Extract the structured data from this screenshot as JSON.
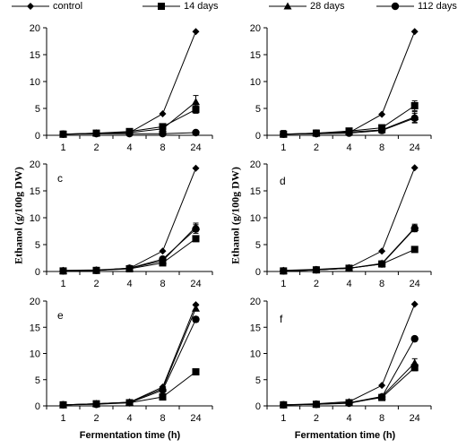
{
  "legend": {
    "items": [
      {
        "label": "control",
        "marker": "diamond"
      },
      {
        "label": "14 days",
        "marker": "square"
      },
      {
        "label": "28 days",
        "marker": "triangle"
      },
      {
        "label": "112 days",
        "marker": "circle"
      }
    ]
  },
  "y_axis_label": "Ethanol (g/100g DW)",
  "x_axis_label": "Fermentation time (h)",
  "chart_data": [
    {
      "type": "line",
      "panel_label": "",
      "categories": [
        "1",
        "2",
        "4",
        "8",
        "24"
      ],
      "ylim": [
        0,
        20
      ],
      "yticks": [
        0,
        5,
        10,
        15,
        20
      ],
      "series": [
        {
          "name": "control",
          "marker": "diamond",
          "values": [
            0.2,
            0.3,
            0.5,
            4.0,
            19.3
          ],
          "errors": [
            0,
            0,
            0,
            0,
            0
          ]
        },
        {
          "name": "14 days",
          "marker": "square",
          "values": [
            0.2,
            0.4,
            0.7,
            1.6,
            4.8
          ],
          "errors": [
            0.5,
            0.4,
            0.3,
            0.3,
            0.7
          ]
        },
        {
          "name": "28 days",
          "marker": "triangle",
          "values": [
            0.2,
            0.4,
            0.5,
            1.2,
            6.2
          ],
          "errors": [
            0.6,
            0.4,
            0.3,
            0.3,
            1.2
          ]
        },
        {
          "name": "112 days",
          "marker": "circle",
          "values": [
            0.2,
            0.3,
            0.3,
            0.3,
            0.5
          ],
          "errors": [
            0,
            0,
            0,
            0,
            0
          ]
        }
      ]
    },
    {
      "type": "line",
      "panel_label": "",
      "categories": [
        "1",
        "2",
        "4",
        "8",
        "24"
      ],
      "ylim": [
        0,
        20
      ],
      "yticks": [
        0,
        5,
        10,
        15,
        20
      ],
      "series": [
        {
          "name": "control",
          "marker": "diamond",
          "values": [
            0.2,
            0.3,
            0.5,
            3.9,
            19.3
          ],
          "errors": [
            0,
            0,
            0,
            0,
            0
          ]
        },
        {
          "name": "14 days",
          "marker": "square",
          "values": [
            0.2,
            0.4,
            0.8,
            1.4,
            5.5
          ],
          "errors": [
            0.5,
            0.5,
            0.5,
            0.5,
            0.9
          ]
        },
        {
          "name": "28 days",
          "marker": "triangle",
          "values": [
            0.2,
            0.4,
            0.6,
            1.0,
            3.4
          ],
          "errors": [
            0.7,
            0.6,
            0.6,
            0.6,
            1.0
          ]
        },
        {
          "name": "112 days",
          "marker": "circle",
          "values": [
            0.2,
            0.3,
            0.4,
            0.9,
            3.2
          ],
          "errors": [
            0.4,
            0.4,
            0.4,
            0.5,
            0.9
          ]
        }
      ]
    },
    {
      "type": "line",
      "panel_label": "c",
      "categories": [
        "1",
        "2",
        "4",
        "8",
        "24"
      ],
      "ylim": [
        0,
        20
      ],
      "yticks": [
        0,
        5,
        10,
        15,
        20
      ],
      "series": [
        {
          "name": "control",
          "marker": "diamond",
          "values": [
            0.2,
            0.3,
            0.6,
            3.8,
            19.2
          ],
          "errors": [
            0,
            0,
            0,
            0,
            0
          ]
        },
        {
          "name": "14 days",
          "marker": "square",
          "values": [
            0.1,
            0.2,
            0.5,
            1.6,
            6.1
          ],
          "errors": [
            0.2,
            0.2,
            0.2,
            0.3,
            0.5
          ]
        },
        {
          "name": "28 days",
          "marker": "triangle",
          "values": [
            0.1,
            0.2,
            0.6,
            2.0,
            8.3
          ],
          "errors": [
            0.2,
            0.2,
            0.2,
            0.3,
            0.7
          ]
        },
        {
          "name": "112 days",
          "marker": "circle",
          "values": [
            0.1,
            0.2,
            0.6,
            2.3,
            7.9
          ],
          "errors": [
            0.2,
            0.2,
            0.2,
            0.3,
            0.8
          ]
        }
      ]
    },
    {
      "type": "line",
      "panel_label": "d",
      "categories": [
        "1",
        "2",
        "4",
        "8",
        "24"
      ],
      "ylim": [
        0,
        20
      ],
      "yticks": [
        0,
        5,
        10,
        15,
        20
      ],
      "series": [
        {
          "name": "control",
          "marker": "diamond",
          "values": [
            0.2,
            0.4,
            0.7,
            3.8,
            19.3
          ],
          "errors": [
            0,
            0,
            0,
            0,
            0
          ]
        },
        {
          "name": "14 days",
          "marker": "square",
          "values": [
            0.1,
            0.3,
            0.6,
            1.4,
            4.1
          ],
          "errors": [
            0.2,
            0.2,
            0.2,
            0.3,
            0.4
          ]
        },
        {
          "name": "28 days",
          "marker": "triangle",
          "values": [
            0.1,
            0.3,
            0.6,
            1.5,
            8.1
          ],
          "errors": [
            0.2,
            0.2,
            0.2,
            0.3,
            0.7
          ]
        },
        {
          "name": "112 days",
          "marker": "circle",
          "values": [
            0.1,
            0.3,
            0.6,
            1.4,
            8.0
          ],
          "errors": [
            0.2,
            0.2,
            0.2,
            0.3,
            0.6
          ]
        }
      ]
    },
    {
      "type": "line",
      "panel_label": "e",
      "categories": [
        "1",
        "2",
        "4",
        "8",
        "24"
      ],
      "ylim": [
        0,
        20
      ],
      "yticks": [
        0,
        5,
        10,
        15,
        20
      ],
      "series": [
        {
          "name": "control",
          "marker": "diamond",
          "values": [
            0.2,
            0.4,
            0.7,
            3.6,
            19.3
          ],
          "errors": [
            0,
            0,
            0,
            0,
            0
          ]
        },
        {
          "name": "14 days",
          "marker": "square",
          "values": [
            0.2,
            0.4,
            0.6,
            1.7,
            6.5
          ],
          "errors": [
            0.2,
            0.2,
            0.2,
            0.3,
            0.4
          ]
        },
        {
          "name": "28 days",
          "marker": "triangle",
          "values": [
            0.2,
            0.4,
            0.7,
            3.3,
            18.6
          ],
          "errors": [
            0.2,
            0.2,
            0.2,
            0.3,
            0.5
          ]
        },
        {
          "name": "112 days",
          "marker": "circle",
          "values": [
            0.2,
            0.3,
            0.6,
            3.0,
            16.5
          ],
          "errors": [
            0.2,
            0.2,
            0.2,
            0.3,
            0.5
          ]
        }
      ]
    },
    {
      "type": "line",
      "panel_label": "f",
      "categories": [
        "1",
        "2",
        "4",
        "8",
        "24"
      ],
      "ylim": [
        0,
        20
      ],
      "yticks": [
        0,
        5,
        10,
        15,
        20
      ],
      "series": [
        {
          "name": "control",
          "marker": "diamond",
          "values": [
            0.2,
            0.4,
            0.8,
            3.9,
            19.4
          ],
          "errors": [
            0,
            0,
            0,
            0,
            0
          ]
        },
        {
          "name": "14 days",
          "marker": "square",
          "values": [
            0.2,
            0.3,
            0.6,
            1.6,
            7.3
          ],
          "errors": [
            0.2,
            0.2,
            0.2,
            0.3,
            0.6
          ]
        },
        {
          "name": "28 days",
          "marker": "triangle",
          "values": [
            0.2,
            0.3,
            0.6,
            1.8,
            8.2
          ],
          "errors": [
            0.2,
            0.2,
            0.2,
            0.3,
            0.8
          ]
        },
        {
          "name": "112 days",
          "marker": "circle",
          "values": [
            0.2,
            0.3,
            0.5,
            1.7,
            12.8
          ],
          "errors": [
            0.2,
            0.2,
            0.2,
            0.3,
            0.4
          ]
        }
      ]
    }
  ]
}
